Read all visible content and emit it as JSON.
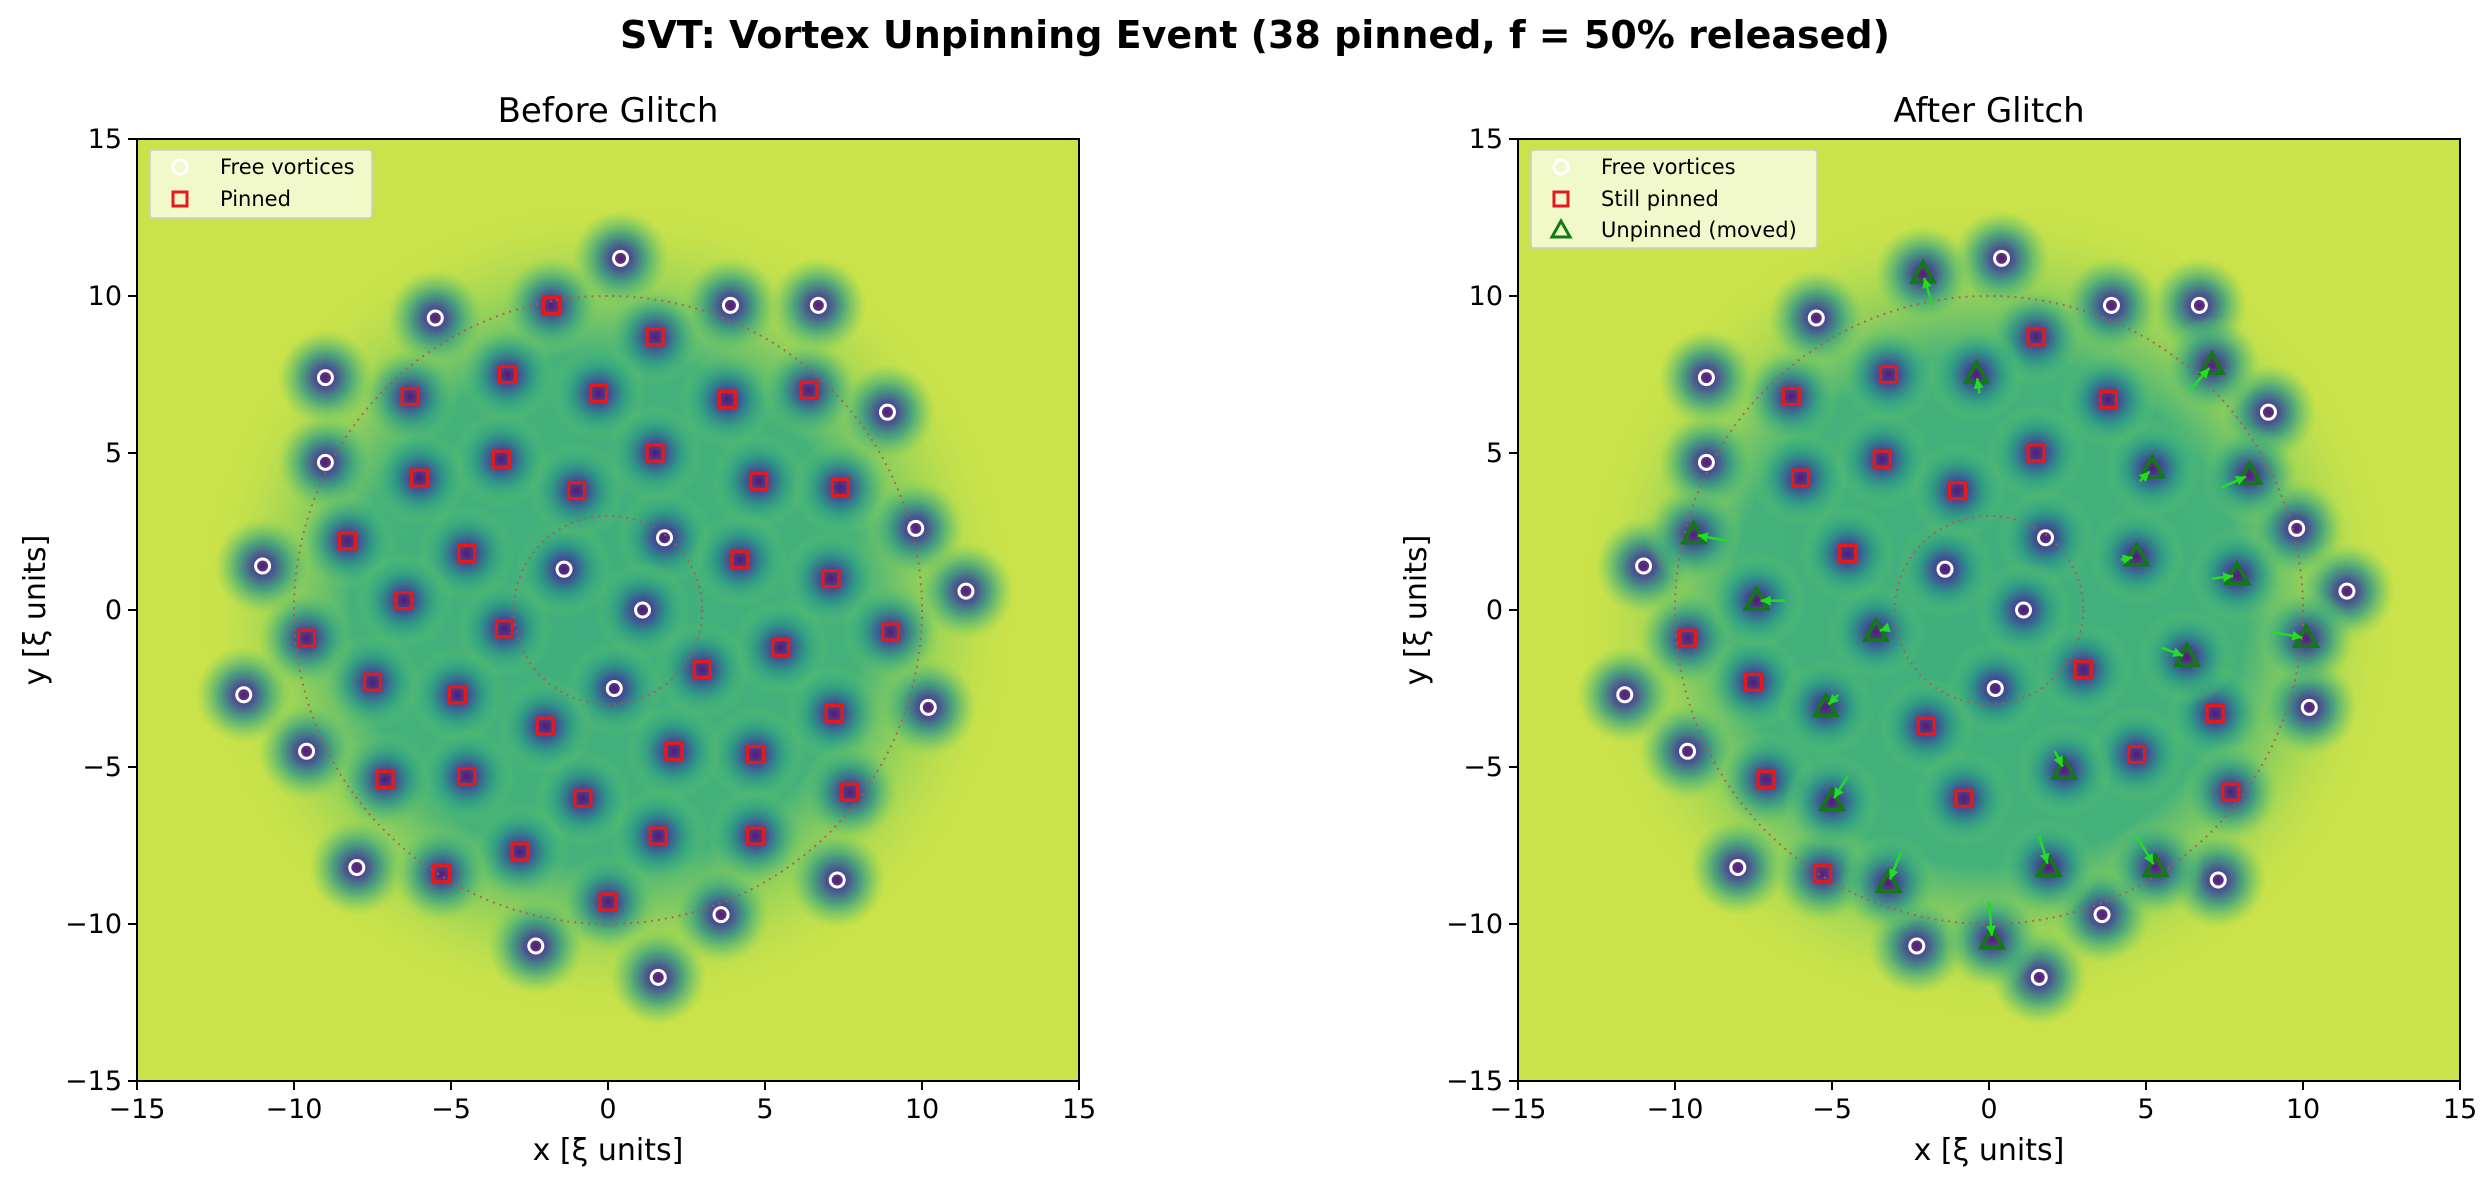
{
  "suptitle": "SVT: Vortex Unpinning Event  (38 pinned, f = 50% released)",
  "colors": {
    "background_field": "#cbe34a",
    "free_vortex": "#ffffff",
    "pinned": "#e41a1c",
    "unpinned": "#117a11",
    "arrow": "#22dd22",
    "ring": "#c0504d"
  },
  "chart_data": [
    {
      "type": "scatter",
      "title": "Before Glitch",
      "xlabel": "x  [ξ units]",
      "ylabel": "y  [ξ units]",
      "xlim": [
        -15,
        15
      ],
      "ylim": [
        -15,
        15
      ],
      "xticks": [
        -15,
        -10,
        -5,
        0,
        5,
        10,
        15
      ],
      "yticks": [
        -15,
        -10,
        -5,
        0,
        5,
        10,
        15
      ],
      "reference_circles_radius": [
        3,
        10
      ],
      "legend_position": "upper-left",
      "series": [
        {
          "name": "Free vortices",
          "points": [
            [
              0.4,
              11.2
            ],
            [
              -5.5,
              9.3
            ],
            [
              3.9,
              9.7
            ],
            [
              6.7,
              9.7
            ],
            [
              -9,
              7.4
            ],
            [
              8.9,
              6.3
            ],
            [
              -9,
              4.7
            ],
            [
              9.8,
              2.6
            ],
            [
              -11,
              1.4
            ],
            [
              1.8,
              2.3
            ],
            [
              -1.4,
              1.3
            ],
            [
              1.1,
              0
            ],
            [
              11.4,
              0.6
            ],
            [
              -11.6,
              -2.7
            ],
            [
              0.2,
              -2.5
            ],
            [
              10.2,
              -3.1
            ],
            [
              -9.6,
              -4.5
            ],
            [
              -8,
              -8.2
            ],
            [
              7.3,
              -8.6
            ],
            [
              3.6,
              -9.7
            ],
            [
              -2.3,
              -10.7
            ],
            [
              1.6,
              -11.7
            ]
          ]
        },
        {
          "name": "Pinned",
          "points": [
            [
              -1.8,
              9.7
            ],
            [
              1.5,
              8.7
            ],
            [
              -3.2,
              7.5
            ],
            [
              -6.3,
              6.8
            ],
            [
              -0.3,
              6.9
            ],
            [
              3.8,
              6.7
            ],
            [
              6.4,
              7
            ],
            [
              -6,
              4.2
            ],
            [
              -3.4,
              4.8
            ],
            [
              -1,
              3.8
            ],
            [
              1.5,
              5
            ],
            [
              4.8,
              4.1
            ],
            [
              7.4,
              3.9
            ],
            [
              -8.3,
              2.2
            ],
            [
              -4.5,
              1.8
            ],
            [
              4.2,
              1.6
            ],
            [
              -6.5,
              0.3
            ],
            [
              -3.3,
              -0.6
            ],
            [
              7.1,
              1
            ],
            [
              -9.6,
              -0.9
            ],
            [
              5.5,
              -1.2
            ],
            [
              9,
              -0.7
            ],
            [
              -7.5,
              -2.3
            ],
            [
              -4.8,
              -2.7
            ],
            [
              3,
              -1.9
            ],
            [
              -2,
              -3.7
            ],
            [
              2.1,
              -4.5
            ],
            [
              4.7,
              -4.6
            ],
            [
              7.2,
              -3.3
            ],
            [
              -7.1,
              -5.4
            ],
            [
              -4.5,
              -5.3
            ],
            [
              -0.8,
              -6
            ],
            [
              7.7,
              -5.8
            ],
            [
              1.6,
              -7.2
            ],
            [
              4.7,
              -7.2
            ],
            [
              -2.8,
              -7.7
            ],
            [
              -5.3,
              -8.4
            ],
            [
              0,
              -9.3
            ]
          ]
        }
      ]
    },
    {
      "type": "scatter",
      "title": "After Glitch",
      "xlabel": "x  [ξ units]",
      "ylabel": "y  [ξ units]",
      "xlim": [
        -15,
        15
      ],
      "ylim": [
        -15,
        15
      ],
      "xticks": [
        -15,
        -10,
        -5,
        0,
        5,
        10,
        15
      ],
      "yticks": [
        -15,
        -10,
        -5,
        0,
        5,
        10,
        15
      ],
      "reference_circles_radius": [
        3,
        10
      ],
      "legend_position": "upper-left",
      "series": [
        {
          "name": "Free vortices",
          "points": [
            [
              0.4,
              11.2
            ],
            [
              -5.5,
              9.3
            ],
            [
              3.9,
              9.7
            ],
            [
              6.7,
              9.7
            ],
            [
              -9,
              7.4
            ],
            [
              8.9,
              6.3
            ],
            [
              -9,
              4.7
            ],
            [
              9.8,
              2.6
            ],
            [
              -11,
              1.4
            ],
            [
              1.8,
              2.3
            ],
            [
              -1.4,
              1.3
            ],
            [
              1.1,
              0
            ],
            [
              11.4,
              0.6
            ],
            [
              -11.6,
              -2.7
            ],
            [
              0.2,
              -2.5
            ],
            [
              10.2,
              -3.1
            ],
            [
              -9.6,
              -4.5
            ],
            [
              -8,
              -8.2
            ],
            [
              7.3,
              -8.6
            ],
            [
              3.6,
              -9.7
            ],
            [
              -2.3,
              -10.7
            ],
            [
              1.6,
              -11.7
            ]
          ]
        },
        {
          "name": "Still pinned",
          "points": [
            [
              1.5,
              8.7
            ],
            [
              -3.2,
              7.5
            ],
            [
              -6.3,
              6.8
            ],
            [
              3.8,
              6.7
            ],
            [
              -6,
              4.2
            ],
            [
              -3.4,
              4.8
            ],
            [
              -1,
              3.8
            ],
            [
              1.5,
              5
            ],
            [
              -4.5,
              1.8
            ],
            [
              -9.6,
              -0.9
            ],
            [
              -7.5,
              -2.3
            ],
            [
              3,
              -1.9
            ],
            [
              -2,
              -3.7
            ],
            [
              4.7,
              -4.6
            ],
            [
              7.2,
              -3.3
            ],
            [
              -7.1,
              -5.4
            ],
            [
              -0.8,
              -6
            ],
            [
              7.7,
              -5.8
            ],
            [
              -5.3,
              -8.4
            ]
          ]
        },
        {
          "name": "Unpinned (moved)",
          "points": [
            [
              -2.1,
              10.7
            ],
            [
              -0.4,
              7.5
            ],
            [
              7.1,
              7.8
            ],
            [
              5.2,
              4.5
            ],
            [
              8.3,
              4.3
            ],
            [
              -9.4,
              2.4
            ],
            [
              4.7,
              1.7
            ],
            [
              -7.4,
              0.3
            ],
            [
              7.9,
              1.1
            ],
            [
              -3.6,
              -0.7
            ],
            [
              10.1,
              -0.9
            ],
            [
              6.3,
              -1.5
            ],
            [
              -5.2,
              -3.1
            ],
            [
              2.4,
              -5.1
            ],
            [
              -5,
              -6.1
            ],
            [
              1.9,
              -8.2
            ],
            [
              5.3,
              -8.2
            ],
            [
              -3.2,
              -8.7
            ],
            [
              0.1,
              -10.5
            ]
          ],
          "moved_from": [
            [
              -1.8,
              9.7
            ],
            [
              -0.3,
              6.9
            ],
            [
              6.4,
              7
            ],
            [
              4.8,
              4.1
            ],
            [
              7.4,
              3.9
            ],
            [
              -8.3,
              2.2
            ],
            [
              4.2,
              1.6
            ],
            [
              -6.5,
              0.3
            ],
            [
              7.1,
              1
            ],
            [
              -3.3,
              -0.6
            ],
            [
              9,
              -0.7
            ],
            [
              5.5,
              -1.2
            ],
            [
              -4.8,
              -2.7
            ],
            [
              2.1,
              -4.5
            ],
            [
              -4.5,
              -5.3
            ],
            [
              1.6,
              -7.2
            ],
            [
              4.7,
              -7.2
            ],
            [
              -2.8,
              -7.7
            ],
            [
              0,
              -9.3
            ]
          ]
        }
      ]
    }
  ]
}
